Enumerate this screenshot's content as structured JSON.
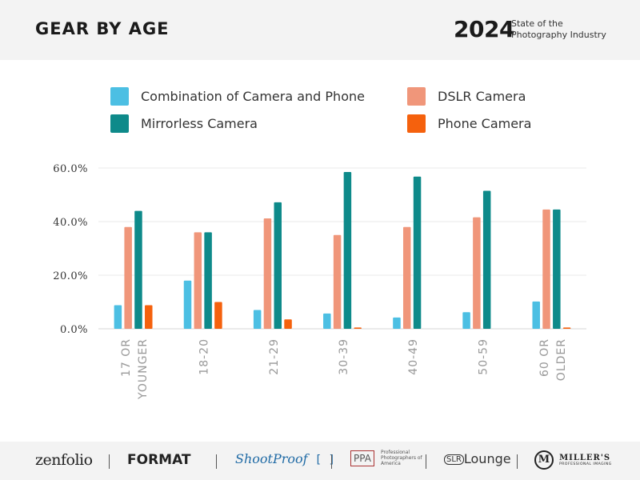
{
  "header": {
    "title": "GEAR BY AGE",
    "year": "2024",
    "report_line1": "State of the",
    "report_line2": "Photography Industry"
  },
  "chart_data": {
    "type": "bar",
    "categories": [
      "17 OR YOUNGER",
      "18-20",
      "21-29",
      "30-39",
      "40-49",
      "50-59",
      "60 OR OLDER"
    ],
    "category_lines": [
      [
        "17 OR",
        "YOUNGER"
      ],
      [
        "18-20"
      ],
      [
        "21-29"
      ],
      [
        "30-39"
      ],
      [
        "40-49"
      ],
      [
        "50-59"
      ],
      [
        "60 OR",
        "OLDER"
      ]
    ],
    "series": [
      {
        "name": "Combination of Camera and Phone",
        "color": "#4cbfe3",
        "values": [
          8.8,
          18.0,
          7.0,
          5.7,
          4.2,
          6.2,
          10.2
        ]
      },
      {
        "name": "DSLR Camera",
        "color": "#f0967a",
        "values": [
          38.0,
          36.0,
          41.2,
          35.0,
          38.0,
          41.6,
          44.5
        ]
      },
      {
        "name": "Mirrorless Camera",
        "color": "#0e8a8a",
        "values": [
          44.0,
          36.0,
          47.2,
          58.5,
          56.8,
          51.5,
          44.5
        ]
      },
      {
        "name": "Phone Camera",
        "color": "#f5610d",
        "values": [
          8.8,
          10.0,
          3.5,
          0.5,
          0.0,
          0.0,
          0.5
        ]
      }
    ],
    "legend_order": [
      0,
      1,
      2,
      3
    ],
    "legend_placement": "top",
    "y_ticks": [
      "0.0%",
      "20.0%",
      "40.0%",
      "60.0%"
    ],
    "y_tick_values": [
      0,
      20,
      40,
      60
    ],
    "ylim": [
      0,
      60
    ],
    "grid": true,
    "title": "",
    "xlabel": "",
    "ylabel": ""
  },
  "footer": {
    "logos": [
      {
        "name": "zenfolio",
        "text": "zenfolio"
      },
      {
        "name": "format",
        "text": "FORMAT"
      },
      {
        "name": "shootproof",
        "text": "ShootProof"
      },
      {
        "name": "ppa",
        "text": "PPA",
        "sub": "Professional Photographers of America"
      },
      {
        "name": "slrlounge",
        "text": "SLR",
        "text2": "Lounge"
      },
      {
        "name": "millers",
        "text": "MILLER'S",
        "sub": "PROFESSIONAL IMAGING"
      }
    ]
  }
}
